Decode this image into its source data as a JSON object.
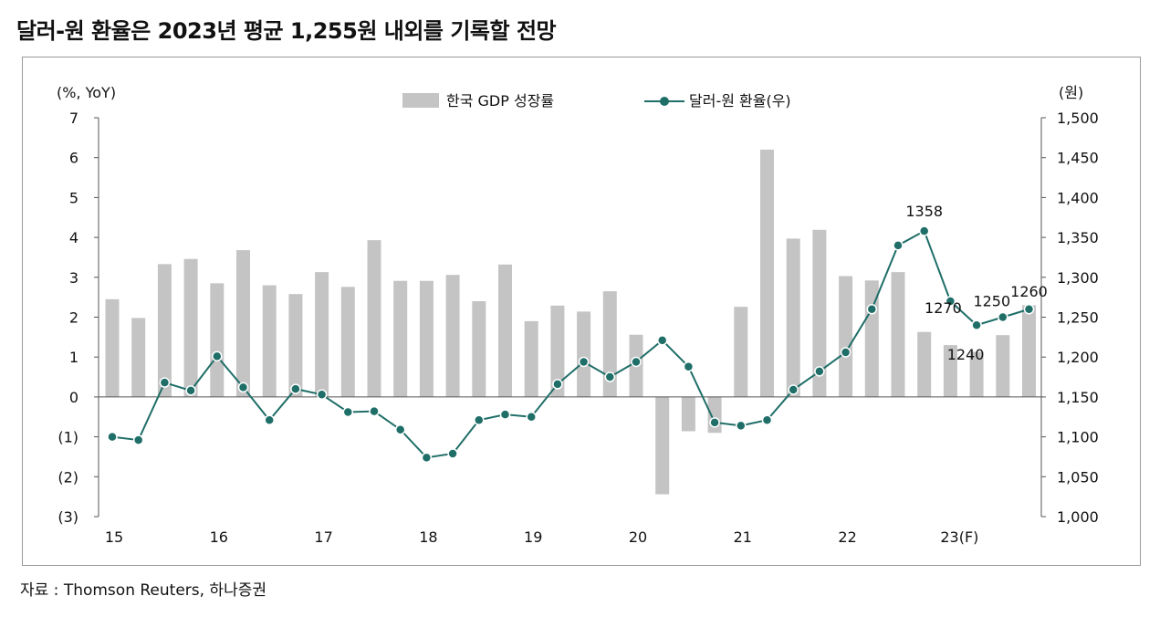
{
  "header": {
    "title": "달러-원 환율은 2023년 평균 1,255원 내외를 기록할 전망"
  },
  "footer": {
    "source": "자료 : Thomson Reuters, 하나증권"
  },
  "colors": {
    "bar": "#c4c4c4",
    "line": "#1f6e68",
    "marker_fill": "#1f6e68",
    "axis": "#555555"
  },
  "chart_data": {
    "type": "bar+line",
    "left_axis": {
      "unit": "(%, YoY)",
      "min": -3,
      "max": 7,
      "ticks": [
        {
          "v": 7,
          "label": "7"
        },
        {
          "v": 6,
          "label": "6"
        },
        {
          "v": 5,
          "label": "5"
        },
        {
          "v": 4,
          "label": "4"
        },
        {
          "v": 3,
          "label": "3"
        },
        {
          "v": 2,
          "label": "2"
        },
        {
          "v": 1,
          "label": "1"
        },
        {
          "v": 0,
          "label": "0"
        },
        {
          "v": -1,
          "label": "(1)"
        },
        {
          "v": -2,
          "label": "(2)"
        },
        {
          "v": -3,
          "label": "(3)"
        }
      ]
    },
    "right_axis": {
      "unit": "(원)",
      "min": 1000,
      "max": 1500,
      "ticks": [
        {
          "v": 1500,
          "label": "1,500"
        },
        {
          "v": 1450,
          "label": "1,450"
        },
        {
          "v": 1400,
          "label": "1,400"
        },
        {
          "v": 1350,
          "label": "1,350"
        },
        {
          "v": 1300,
          "label": "1,300"
        },
        {
          "v": 1250,
          "label": "1,250"
        },
        {
          "v": 1200,
          "label": "1,200"
        },
        {
          "v": 1150,
          "label": "1,150"
        },
        {
          "v": 1100,
          "label": "1,100"
        },
        {
          "v": 1050,
          "label": "1,050"
        },
        {
          "v": 1000,
          "label": "1,000"
        }
      ]
    },
    "x_axis": {
      "year_labels": [
        {
          "label": "15",
          "q": 0
        },
        {
          "label": "16",
          "q": 4
        },
        {
          "label": "17",
          "q": 8
        },
        {
          "label": "18",
          "q": 12
        },
        {
          "label": "19",
          "q": 16
        },
        {
          "label": "20",
          "q": 20
        },
        {
          "label": "21",
          "q": 24
        },
        {
          "label": "22",
          "q": 28
        },
        {
          "label": "23(F)",
          "q": 32
        }
      ]
    },
    "series": [
      {
        "name": "한국 GDP 성장률",
        "kind": "bar",
        "axis": "left",
        "values": [
          2.45,
          1.98,
          3.33,
          3.46,
          2.85,
          3.68,
          2.8,
          2.58,
          3.13,
          2.76,
          3.93,
          2.91,
          2.91,
          3.06,
          2.4,
          3.32,
          1.9,
          2.29,
          2.14,
          2.65,
          1.56,
          -2.44,
          -0.86,
          -0.9,
          2.26,
          6.2,
          3.97,
          4.19,
          3.03,
          2.92,
          3.13,
          1.63,
          1.3,
          1.13,
          1.55,
          2.3
        ]
      },
      {
        "name": "달러-원 환율(우)",
        "kind": "line",
        "axis": "right",
        "values": [
          1100,
          1096,
          1168,
          1158,
          1201,
          1162,
          1121,
          1160,
          1153,
          1131,
          1132,
          1109,
          1074,
          1079,
          1121,
          1128,
          1125,
          1166,
          1194,
          1175,
          1194,
          1221,
          1188,
          1118,
          1114,
          1121,
          1159,
          1182,
          1206,
          1260,
          1340,
          1358,
          1270,
          1240,
          1250,
          1260
        ]
      }
    ],
    "annotations": [
      {
        "text": "1358",
        "index": 31
      },
      {
        "text": "1270",
        "index": 32
      },
      {
        "text": "1240",
        "index": 33
      },
      {
        "text": "1250",
        "index": 34
      },
      {
        "text": "1260",
        "index": 35
      }
    ]
  }
}
